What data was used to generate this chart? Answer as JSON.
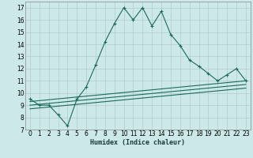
{
  "title": "",
  "xlabel": "Humidex (Indice chaleur)",
  "ylabel": "",
  "background_color": "#cde8e8",
  "grid_color": "#b0cccc",
  "line_color": "#1a6b5a",
  "xlim": [
    -0.5,
    23.5
  ],
  "ylim": [
    7,
    17.5
  ],
  "yticks": [
    7,
    8,
    9,
    10,
    11,
    12,
    13,
    14,
    15,
    16,
    17
  ],
  "xticks": [
    0,
    1,
    2,
    3,
    4,
    5,
    6,
    7,
    8,
    9,
    10,
    11,
    12,
    13,
    14,
    15,
    16,
    17,
    18,
    19,
    20,
    21,
    22,
    23
  ],
  "main_line_x": [
    0,
    1,
    2,
    3,
    4,
    5,
    6,
    7,
    8,
    9,
    10,
    11,
    12,
    13,
    14,
    15,
    16,
    17,
    18,
    19,
    20,
    21,
    22,
    23
  ],
  "main_line_y": [
    9.5,
    9.0,
    9.0,
    8.2,
    7.3,
    9.5,
    10.5,
    12.3,
    14.2,
    15.7,
    17.0,
    16.0,
    17.0,
    15.5,
    16.7,
    14.8,
    13.9,
    12.7,
    12.2,
    11.6,
    11.0,
    11.5,
    12.0,
    11.0
  ],
  "line2_x": [
    0,
    23
  ],
  "line2_y": [
    9.3,
    11.0
  ],
  "line3_x": [
    0,
    23
  ],
  "line3_y": [
    9.0,
    10.7
  ],
  "line4_x": [
    0,
    23
  ],
  "line4_y": [
    8.7,
    10.4
  ]
}
